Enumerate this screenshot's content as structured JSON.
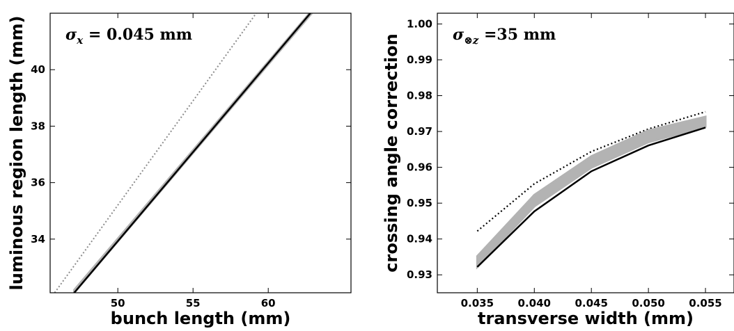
{
  "chart_data": [
    {
      "type": "line",
      "xlabel": "bunch length (mm)",
      "ylabel": "luminous region length (mm)",
      "xlim": [
        45.5,
        65.5
      ],
      "ylim": [
        32.1,
        42.0
      ],
      "xticks": [
        50,
        55,
        60
      ],
      "yticks": [
        34,
        36,
        38,
        40
      ],
      "annotation": {
        "sigma": "σ",
        "sub": "x",
        "rest": " = 0.045 mm"
      },
      "grid": false,
      "series": [
        {
          "style": "dotted-gray",
          "x": [
            45.8,
            59.2
          ],
          "y": [
            32.1,
            42.0
          ]
        },
        {
          "style": "gray-band",
          "x": [
            47.1,
            62.9
          ],
          "y_low": [
            32.1,
            42.0
          ],
          "y_high": [
            32.2,
            42.1
          ]
        },
        {
          "style": "solid-black",
          "x": [
            47.1,
            62.8
          ],
          "y": [
            32.1,
            42.0
          ]
        }
      ]
    },
    {
      "type": "line",
      "xlabel": "transverse width (mm)",
      "ylabel": "crossing angle correction",
      "xlim": [
        0.0315,
        0.0575
      ],
      "ylim": [
        0.925,
        1.003
      ],
      "xticks": [
        "0.035",
        "0.040",
        "0.045",
        "0.050",
        "0.055"
      ],
      "yticks": [
        "0.93",
        "0.94",
        "0.95",
        "0.96",
        "0.97",
        "0.98",
        "0.99",
        "1.00"
      ],
      "annotation": {
        "sigma": "σ",
        "sub": "⊗z",
        "rest": " =35 mm"
      },
      "grid": false,
      "series": [
        {
          "style": "dotted-black",
          "x": [
            0.035,
            0.04,
            0.045,
            0.05,
            0.055
          ],
          "y": [
            0.9422,
            0.9554,
            0.9644,
            0.9707,
            0.9755
          ]
        },
        {
          "style": "gray-band",
          "x": [
            0.035,
            0.04,
            0.045,
            0.05,
            0.055
          ],
          "y_low": [
            0.9322,
            0.9491,
            0.9599,
            0.967,
            0.9713
          ],
          "y_high": [
            0.9352,
            0.9523,
            0.9631,
            0.9703,
            0.9741
          ]
        },
        {
          "style": "solid-black",
          "x": [
            0.035,
            0.04,
            0.045,
            0.05,
            0.055
          ],
          "y": [
            0.9322,
            0.9477,
            0.9589,
            0.9661,
            0.9711
          ]
        }
      ]
    }
  ]
}
